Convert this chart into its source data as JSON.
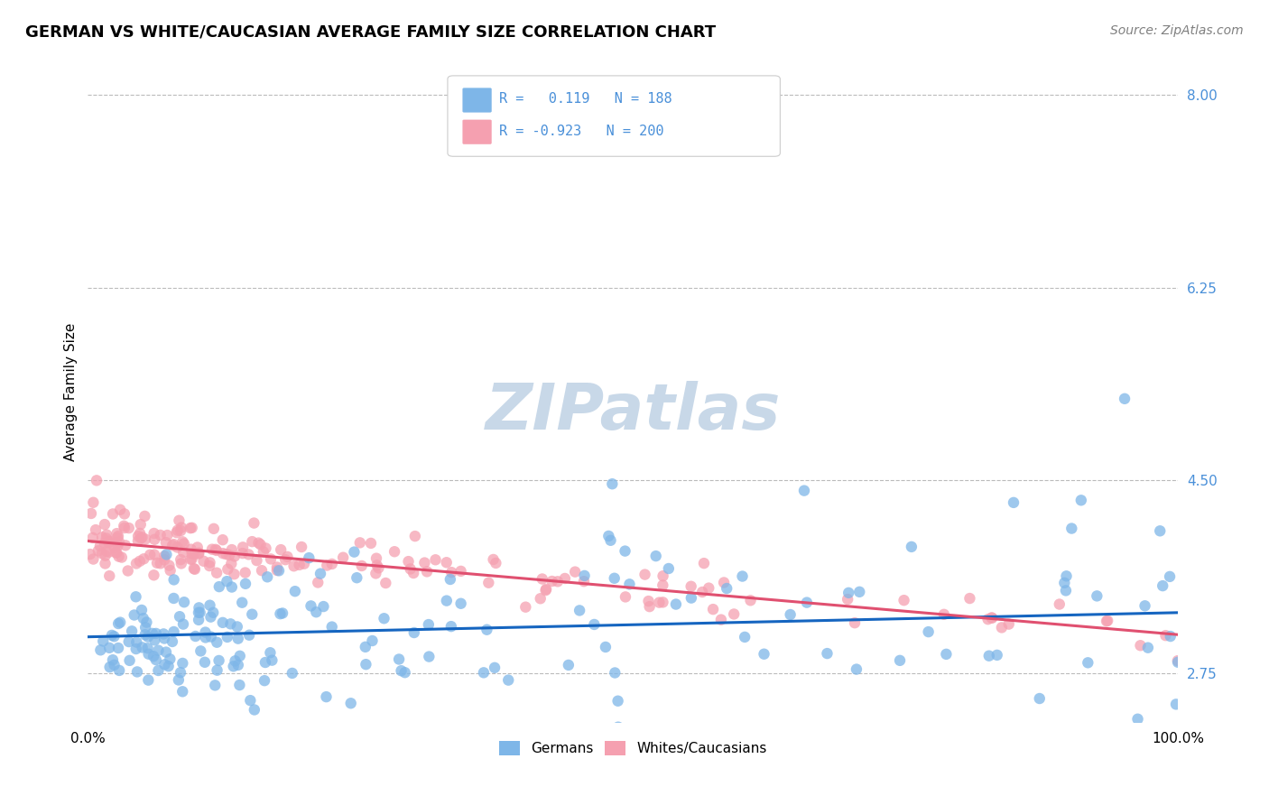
{
  "title": "GERMAN VS WHITE/CAUCASIAN AVERAGE FAMILY SIZE CORRELATION CHART",
  "source": "Source: ZipAtlas.com",
  "ylabel": "Average Family Size",
  "ytick_labels": [
    "2.75",
    "4.50",
    "6.25",
    "8.00"
  ],
  "ytick_values": [
    2.75,
    4.5,
    6.25,
    8.0
  ],
  "ylim": [
    2.3,
    8.3
  ],
  "xlim": [
    0.0,
    1.0
  ],
  "german_R": 0.119,
  "german_N": 188,
  "white_R": -0.923,
  "white_N": 200,
  "german_color": "#7EB6E8",
  "white_color": "#F5A0B0",
  "german_line_color": "#1565C0",
  "white_line_color": "#E05070",
  "legend_text_color": "#4A90D9",
  "background_color": "#FFFFFF",
  "watermark_color": "#C8D8E8",
  "title_fontsize": 13,
  "source_fontsize": 10,
  "legend_fontsize": 11,
  "axis_label_fontsize": 11,
  "tick_fontsize": 11,
  "german_intercept": 3.08,
  "german_slope": 0.22,
  "white_intercept": 3.95,
  "white_slope": -0.85,
  "seed": 42
}
